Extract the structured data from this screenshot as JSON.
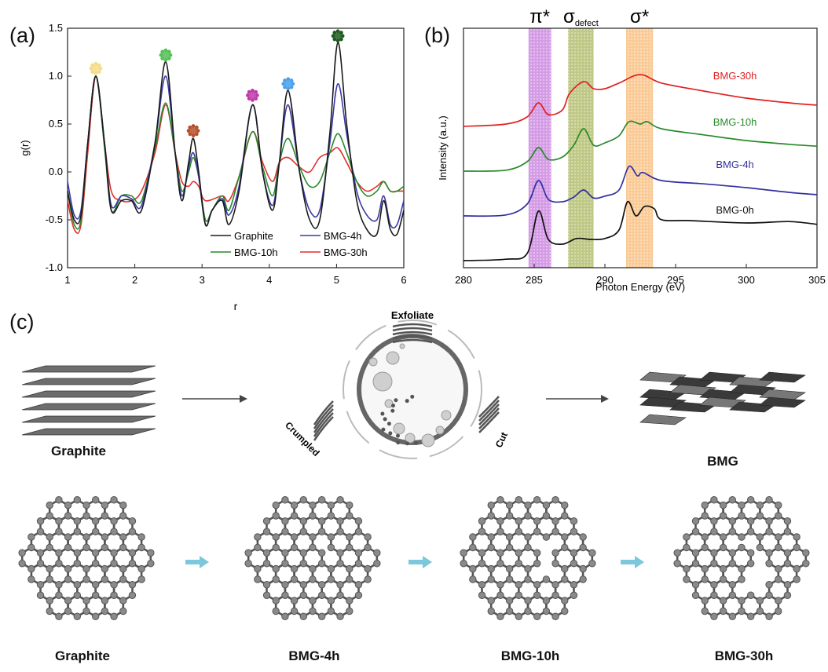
{
  "panels": {
    "a": {
      "label": "(a)"
    },
    "b": {
      "label": "(b)"
    },
    "c": {
      "label": "(c)"
    }
  },
  "chart_data": [
    {
      "id": "a",
      "type": "line",
      "xlabel": "r",
      "ylabel": "g(r)",
      "xlim": [
        1,
        6
      ],
      "ylim": [
        -1.0,
        1.5
      ],
      "x_ticks": [
        "1",
        "2",
        "3",
        "4",
        "5",
        "6"
      ],
      "y_ticks": [
        "-1.0",
        "-0.5",
        "0.0",
        "0.5",
        "1.0",
        "1.5"
      ],
      "legend_position": "bottom-right",
      "series": [
        {
          "name": "Graphite",
          "color": "#1a1a1a",
          "points": [
            [
              1.0,
              -0.2
            ],
            [
              1.1,
              -0.5
            ],
            [
              1.2,
              -0.45
            ],
            [
              1.3,
              0.3
            ],
            [
              1.42,
              1.0
            ],
            [
              1.55,
              0.3
            ],
            [
              1.65,
              -0.4
            ],
            [
              1.8,
              -0.3
            ],
            [
              1.95,
              -0.3
            ],
            [
              2.1,
              -0.4
            ],
            [
              2.3,
              0.3
            ],
            [
              2.46,
              1.15
            ],
            [
              2.6,
              0.2
            ],
            [
              2.7,
              -0.3
            ],
            [
              2.8,
              0.1
            ],
            [
              2.87,
              0.35
            ],
            [
              2.95,
              0.0
            ],
            [
              3.05,
              -0.55
            ],
            [
              3.15,
              -0.4
            ],
            [
              3.3,
              -0.3
            ],
            [
              3.4,
              -0.55
            ],
            [
              3.55,
              -0.2
            ],
            [
              3.75,
              0.7
            ],
            [
              3.9,
              0.0
            ],
            [
              4.05,
              -0.4
            ],
            [
              4.15,
              0.1
            ],
            [
              4.28,
              0.85
            ],
            [
              4.45,
              0.0
            ],
            [
              4.6,
              -0.5
            ],
            [
              4.75,
              -0.5
            ],
            [
              4.9,
              0.4
            ],
            [
              5.02,
              1.35
            ],
            [
              5.15,
              0.5
            ],
            [
              5.3,
              -0.3
            ],
            [
              5.45,
              -0.6
            ],
            [
              5.6,
              -0.65
            ],
            [
              5.7,
              -0.3
            ],
            [
              5.8,
              -0.6
            ],
            [
              5.9,
              -0.65
            ],
            [
              6.0,
              -0.4
            ]
          ]
        },
        {
          "name": "BMG-4h",
          "color": "#3a3aa8",
          "points": [
            [
              1.0,
              -0.1
            ],
            [
              1.1,
              -0.45
            ],
            [
              1.2,
              -0.4
            ],
            [
              1.3,
              0.3
            ],
            [
              1.42,
              1.0
            ],
            [
              1.55,
              0.3
            ],
            [
              1.65,
              -0.35
            ],
            [
              1.8,
              -0.25
            ],
            [
              1.95,
              -0.28
            ],
            [
              2.1,
              -0.35
            ],
            [
              2.3,
              0.3
            ],
            [
              2.46,
              1.0
            ],
            [
              2.6,
              0.2
            ],
            [
              2.7,
              -0.25
            ],
            [
              2.8,
              0.05
            ],
            [
              2.87,
              0.2
            ],
            [
              2.95,
              -0.05
            ],
            [
              3.05,
              -0.55
            ],
            [
              3.15,
              -0.4
            ],
            [
              3.3,
              -0.28
            ],
            [
              3.4,
              -0.45
            ],
            [
              3.55,
              -0.15
            ],
            [
              3.75,
              0.7
            ],
            [
              3.9,
              0.0
            ],
            [
              4.05,
              -0.35
            ],
            [
              4.15,
              0.1
            ],
            [
              4.28,
              0.7
            ],
            [
              4.45,
              0.0
            ],
            [
              4.6,
              -0.4
            ],
            [
              4.75,
              -0.4
            ],
            [
              4.9,
              0.3
            ],
            [
              5.02,
              0.92
            ],
            [
              5.15,
              0.4
            ],
            [
              5.3,
              -0.2
            ],
            [
              5.45,
              -0.45
            ],
            [
              5.6,
              -0.5
            ],
            [
              5.7,
              -0.25
            ],
            [
              5.8,
              -0.55
            ],
            [
              5.9,
              -0.55
            ],
            [
              6.0,
              -0.3
            ]
          ]
        },
        {
          "name": "BMG-10h",
          "color": "#2a8a2a",
          "points": [
            [
              1.0,
              -0.2
            ],
            [
              1.1,
              -0.55
            ],
            [
              1.2,
              -0.5
            ],
            [
              1.3,
              0.3
            ],
            [
              1.42,
              1.0
            ],
            [
              1.55,
              0.25
            ],
            [
              1.65,
              -0.4
            ],
            [
              1.8,
              -0.25
            ],
            [
              1.95,
              -0.25
            ],
            [
              2.1,
              -0.3
            ],
            [
              2.3,
              0.25
            ],
            [
              2.46,
              0.72
            ],
            [
              2.6,
              0.2
            ],
            [
              2.7,
              -0.2
            ],
            [
              2.8,
              0.0
            ],
            [
              2.87,
              0.15
            ],
            [
              2.95,
              -0.05
            ],
            [
              3.05,
              -0.5
            ],
            [
              3.15,
              -0.4
            ],
            [
              3.3,
              -0.25
            ],
            [
              3.4,
              -0.4
            ],
            [
              3.55,
              -0.05
            ],
            [
              3.75,
              0.42
            ],
            [
              3.9,
              0.05
            ],
            [
              4.05,
              -0.25
            ],
            [
              4.15,
              0.1
            ],
            [
              4.28,
              0.35
            ],
            [
              4.45,
              0.05
            ],
            [
              4.6,
              -0.15
            ],
            [
              4.75,
              -0.1
            ],
            [
              4.9,
              0.2
            ],
            [
              5.02,
              0.4
            ],
            [
              5.15,
              0.2
            ],
            [
              5.3,
              -0.1
            ],
            [
              5.45,
              -0.25
            ],
            [
              5.6,
              -0.2
            ],
            [
              5.7,
              -0.1
            ],
            [
              5.8,
              -0.2
            ],
            [
              5.9,
              -0.2
            ],
            [
              6.0,
              -0.15
            ]
          ]
        },
        {
          "name": "BMG-30h",
          "color": "#e03030",
          "points": [
            [
              1.0,
              -0.3
            ],
            [
              1.1,
              -0.6
            ],
            [
              1.2,
              -0.55
            ],
            [
              1.3,
              0.2
            ],
            [
              1.42,
              1.0
            ],
            [
              1.55,
              0.3
            ],
            [
              1.65,
              -0.2
            ],
            [
              1.8,
              -0.3
            ],
            [
              1.95,
              -0.3
            ],
            [
              2.1,
              -0.2
            ],
            [
              2.3,
              0.2
            ],
            [
              2.46,
              0.7
            ],
            [
              2.6,
              0.2
            ],
            [
              2.7,
              -0.1
            ],
            [
              2.8,
              -0.15
            ],
            [
              2.87,
              -0.1
            ],
            [
              2.95,
              -0.15
            ],
            [
              3.05,
              -0.3
            ],
            [
              3.3,
              -0.25
            ],
            [
              3.4,
              -0.3
            ],
            [
              3.55,
              -0.05
            ],
            [
              3.75,
              0.42
            ],
            [
              3.9,
              0.1
            ],
            [
              4.05,
              -0.1
            ],
            [
              4.15,
              0.1
            ],
            [
              4.28,
              0.15
            ],
            [
              4.45,
              0.05
            ],
            [
              4.6,
              0.0
            ],
            [
              4.75,
              0.15
            ],
            [
              4.9,
              0.2
            ],
            [
              5.02,
              0.25
            ],
            [
              5.15,
              0.1
            ],
            [
              5.3,
              -0.1
            ],
            [
              5.45,
              -0.2
            ],
            [
              5.6,
              -0.15
            ],
            [
              5.7,
              -0.1
            ],
            [
              5.8,
              -0.2
            ],
            [
              5.9,
              -0.2
            ],
            [
              6.0,
              -0.2
            ]
          ]
        }
      ],
      "peak_markers": [
        {
          "x": 1.42,
          "y": 1.08,
          "color": "#f3dc8a"
        },
        {
          "x": 2.46,
          "y": 1.22,
          "color": "#55c055"
        },
        {
          "x": 2.87,
          "y": 0.43,
          "color": "#b5502a"
        },
        {
          "x": 3.75,
          "y": 0.8,
          "color": "#c03aa8"
        },
        {
          "x": 4.28,
          "y": 0.92,
          "color": "#4aa0ea"
        },
        {
          "x": 5.02,
          "y": 1.42,
          "color": "#1e5a1e"
        }
      ]
    },
    {
      "id": "b",
      "type": "line",
      "xlabel": "Photon Energy (eV)",
      "ylabel": "Intensity (a.u.)",
      "xlim": [
        280,
        305
      ],
      "x_ticks": [
        "280",
        "285",
        "290",
        "295",
        "300",
        "305"
      ],
      "y_ticks_shown": false,
      "bands": [
        {
          "label": "π*",
          "from": 284.6,
          "to": 286.2,
          "color": "#b04ad0"
        },
        {
          "label": "σ",
          "sub": "defect",
          "from": 287.4,
          "to": 289.2,
          "color": "#8a9a20"
        },
        {
          "label": "σ*",
          "from": 291.5,
          "to": 293.4,
          "color": "#f5a040"
        }
      ],
      "series": [
        {
          "name": "BMG-30h",
          "color": "#e02020",
          "points": [
            [
              280,
              2.9
            ],
            [
              283,
              2.95
            ],
            [
              284.5,
              3.1
            ],
            [
              285.3,
              3.4
            ],
            [
              286,
              3.15
            ],
            [
              287,
              3.25
            ],
            [
              287.5,
              3.6
            ],
            [
              288.5,
              3.85
            ],
            [
              289.2,
              3.7
            ],
            [
              290,
              3.7
            ],
            [
              291,
              3.82
            ],
            [
              292.5,
              4.0
            ],
            [
              294,
              3.82
            ],
            [
              297,
              3.65
            ],
            [
              300,
              3.5
            ],
            [
              303,
              3.4
            ],
            [
              305,
              3.35
            ]
          ]
        },
        {
          "name": "BMG-10h",
          "color": "#2a8a2a",
          "points": [
            [
              280,
              1.95
            ],
            [
              283,
              1.97
            ],
            [
              284.5,
              2.15
            ],
            [
              285.3,
              2.45
            ],
            [
              286,
              2.2
            ],
            [
              287,
              2.25
            ],
            [
              287.8,
              2.5
            ],
            [
              288.5,
              2.85
            ],
            [
              289.2,
              2.5
            ],
            [
              290,
              2.55
            ],
            [
              291,
              2.7
            ],
            [
              291.7,
              3.0
            ],
            [
              292.5,
              2.95
            ],
            [
              293,
              3.0
            ],
            [
              294,
              2.85
            ],
            [
              297,
              2.72
            ],
            [
              300,
              2.6
            ],
            [
              303,
              2.52
            ],
            [
              305,
              2.48
            ]
          ]
        },
        {
          "name": "BMG-4h",
          "color": "#3030a0",
          "points": [
            [
              280,
              1.0
            ],
            [
              283,
              1.02
            ],
            [
              284.5,
              1.25
            ],
            [
              285.3,
              1.75
            ],
            [
              286,
              1.35
            ],
            [
              287,
              1.3
            ],
            [
              287.8,
              1.4
            ],
            [
              288.5,
              1.55
            ],
            [
              289.2,
              1.38
            ],
            [
              290,
              1.42
            ],
            [
              291,
              1.55
            ],
            [
              291.7,
              2.05
            ],
            [
              292.3,
              1.85
            ],
            [
              292.7,
              1.92
            ],
            [
              294,
              1.75
            ],
            [
              297,
              1.68
            ],
            [
              300,
              1.6
            ],
            [
              303,
              1.5
            ],
            [
              305,
              1.45
            ]
          ]
        },
        {
          "name": "BMG-0h",
          "color": "#111111",
          "points": [
            [
              280,
              0.05
            ],
            [
              283,
              0.08
            ],
            [
              284.5,
              0.2
            ],
            [
              285.3,
              1.1
            ],
            [
              286,
              0.5
            ],
            [
              287,
              0.4
            ],
            [
              288,
              0.52
            ],
            [
              289,
              0.5
            ],
            [
              290,
              0.52
            ],
            [
              291,
              0.7
            ],
            [
              291.6,
              1.3
            ],
            [
              292.2,
              1.0
            ],
            [
              292.8,
              1.2
            ],
            [
              293.5,
              1.15
            ],
            [
              294,
              0.92
            ],
            [
              296,
              0.9
            ],
            [
              300,
              0.85
            ],
            [
              303,
              0.88
            ],
            [
              305,
              0.82
            ]
          ]
        }
      ]
    }
  ],
  "schematic": {
    "top_captions": {
      "graphite": "Graphite",
      "bmg": "BMG"
    },
    "mill_labels": {
      "exfoliate": "Exfoliate",
      "crumpled": "Crumpled",
      "cut": "Cut"
    },
    "bottom_captions": [
      "Graphite",
      "BMG-4h",
      "BMG-10h",
      "BMG-30h"
    ]
  }
}
